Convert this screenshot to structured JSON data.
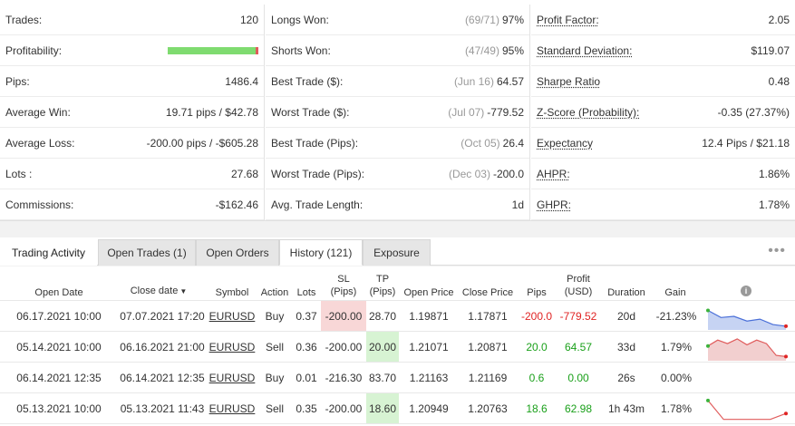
{
  "stats": {
    "col1": [
      {
        "label": "Trades:",
        "value": "120"
      },
      {
        "label": "Profitability:",
        "bar_fraction": 0.97
      },
      {
        "label": "Pips:",
        "value": "1486.4"
      },
      {
        "label": "Average Win:",
        "value": "19.71 pips / $42.78"
      },
      {
        "label": "Average Loss:",
        "value": "-200.00 pips / -$605.28"
      },
      {
        "label": "Lots :",
        "value": "27.68"
      },
      {
        "label": "Commissions:",
        "value": "-$162.46"
      }
    ],
    "col2": [
      {
        "label": "Longs Won:",
        "dim": "(69/71)",
        "value": "97%"
      },
      {
        "label": "Shorts Won:",
        "dim": "(47/49)",
        "value": "95%"
      },
      {
        "label": "Best Trade ($):",
        "dim": "(Jun 16)",
        "value": "64.57"
      },
      {
        "label": "Worst Trade ($):",
        "dim": "(Jul 07)",
        "value": "-779.52"
      },
      {
        "label": "Best Trade (Pips):",
        "dim": "(Oct 05)",
        "value": "26.4"
      },
      {
        "label": "Worst Trade (Pips):",
        "dim": "(Dec 03)",
        "value": "-200.0"
      },
      {
        "label": "Avg. Trade Length:",
        "dim": "",
        "value": "1d"
      }
    ],
    "col3": [
      {
        "label": "Profit Factor:",
        "value": "2.05"
      },
      {
        "label": "Standard Deviation:",
        "value": "$119.07"
      },
      {
        "label": "Sharpe Ratio",
        "value": "0.48"
      },
      {
        "label": "Z-Score (Probability):",
        "value": "-0.35 (27.37%)"
      },
      {
        "label": "Expectancy",
        "value": "12.4 Pips / $21.18"
      },
      {
        "label": "AHPR:",
        "value": "1.86%"
      },
      {
        "label": "GHPR:",
        "value": "1.78%"
      }
    ]
  },
  "tabs": {
    "title": "Trading Activity",
    "open_trades": "Open Trades (1)",
    "open_orders": "Open Orders",
    "history": "History (121)",
    "exposure": "Exposure",
    "more": "•••"
  },
  "table": {
    "headers": {
      "open_date": "Open Date",
      "close_date": "Close date",
      "close_date_caret": "▼",
      "symbol": "Symbol",
      "action": "Action",
      "lots": "Lots",
      "sl": "SL",
      "sl_unit": "(Pips)",
      "tp": "TP",
      "tp_unit": "(Pips)",
      "open_price": "Open Price",
      "close_price": "Close Price",
      "pips": "Pips",
      "profit": "Profit",
      "profit_unit": "(USD)",
      "duration": "Duration",
      "gain": "Gain",
      "info": "i"
    },
    "rows": [
      {
        "open_date": "06.17.2021 10:00",
        "close_date": "07.07.2021 17:20",
        "symbol": "EURUSD",
        "action": "Buy",
        "lots": "0.37",
        "sl": "-200.00",
        "tp": "28.70",
        "open_price": "1.19871",
        "close_price": "1.17871",
        "pips": "-200.0",
        "profit": "-779.52",
        "duration": "20d",
        "gain": "-21.23%",
        "result": "loss",
        "hit": "sl",
        "spark": [
          0.25,
          0.55,
          0.5,
          0.7,
          0.62,
          0.85,
          0.92
        ],
        "spark_color": "#4a6fd8",
        "spark_fill": "#c6d3f3"
      },
      {
        "open_date": "05.14.2021 10:00",
        "close_date": "06.16.2021 21:00",
        "symbol": "EURUSD",
        "action": "Sell",
        "lots": "0.36",
        "sl": "-200.00",
        "tp": "20.00",
        "open_price": "1.21071",
        "close_price": "1.20871",
        "pips": "20.0",
        "profit": "64.57",
        "duration": "33d",
        "gain": "1.79%",
        "result": "win",
        "hit": "tp",
        "spark": [
          0.45,
          0.2,
          0.35,
          0.15,
          0.4,
          0.2,
          0.35,
          0.85,
          0.9
        ],
        "spark_color": "#e05c5c",
        "spark_fill": "#f2cfcf"
      },
      {
        "open_date": "06.14.2021 12:35",
        "close_date": "06.14.2021 12:35",
        "symbol": "EURUSD",
        "action": "Buy",
        "lots": "0.01",
        "sl": "-216.30",
        "tp": "83.70",
        "open_price": "1.21163",
        "close_price": "1.21169",
        "pips": "0.6",
        "profit": "0.00",
        "duration": "26s",
        "gain": "0.00%",
        "result": "win",
        "hit": "none",
        "spark": [],
        "spark_color": "#e05c5c",
        "spark_fill": "#f2cfcf"
      },
      {
        "open_date": "05.13.2021 10:00",
        "close_date": "05.13.2021 11:43",
        "symbol": "EURUSD",
        "action": "Sell",
        "lots": "0.35",
        "sl": "-200.00",
        "tp": "18.60",
        "open_price": "1.20949",
        "close_price": "1.20763",
        "pips": "18.6",
        "profit": "62.98",
        "duration": "1h 43m",
        "gain": "1.78%",
        "result": "win",
        "hit": "tp",
        "spark": [
          0.15,
          0.95,
          0.95,
          0.95,
          0.95,
          0.7
        ],
        "spark_color": "#e05c5c",
        "spark_fill": "none"
      }
    ]
  },
  "colors": {
    "win": "#1aa01a",
    "loss": "#e02424",
    "profit_bar_green": "#7fdb70",
    "profit_bar_red": "#e05c5c"
  }
}
